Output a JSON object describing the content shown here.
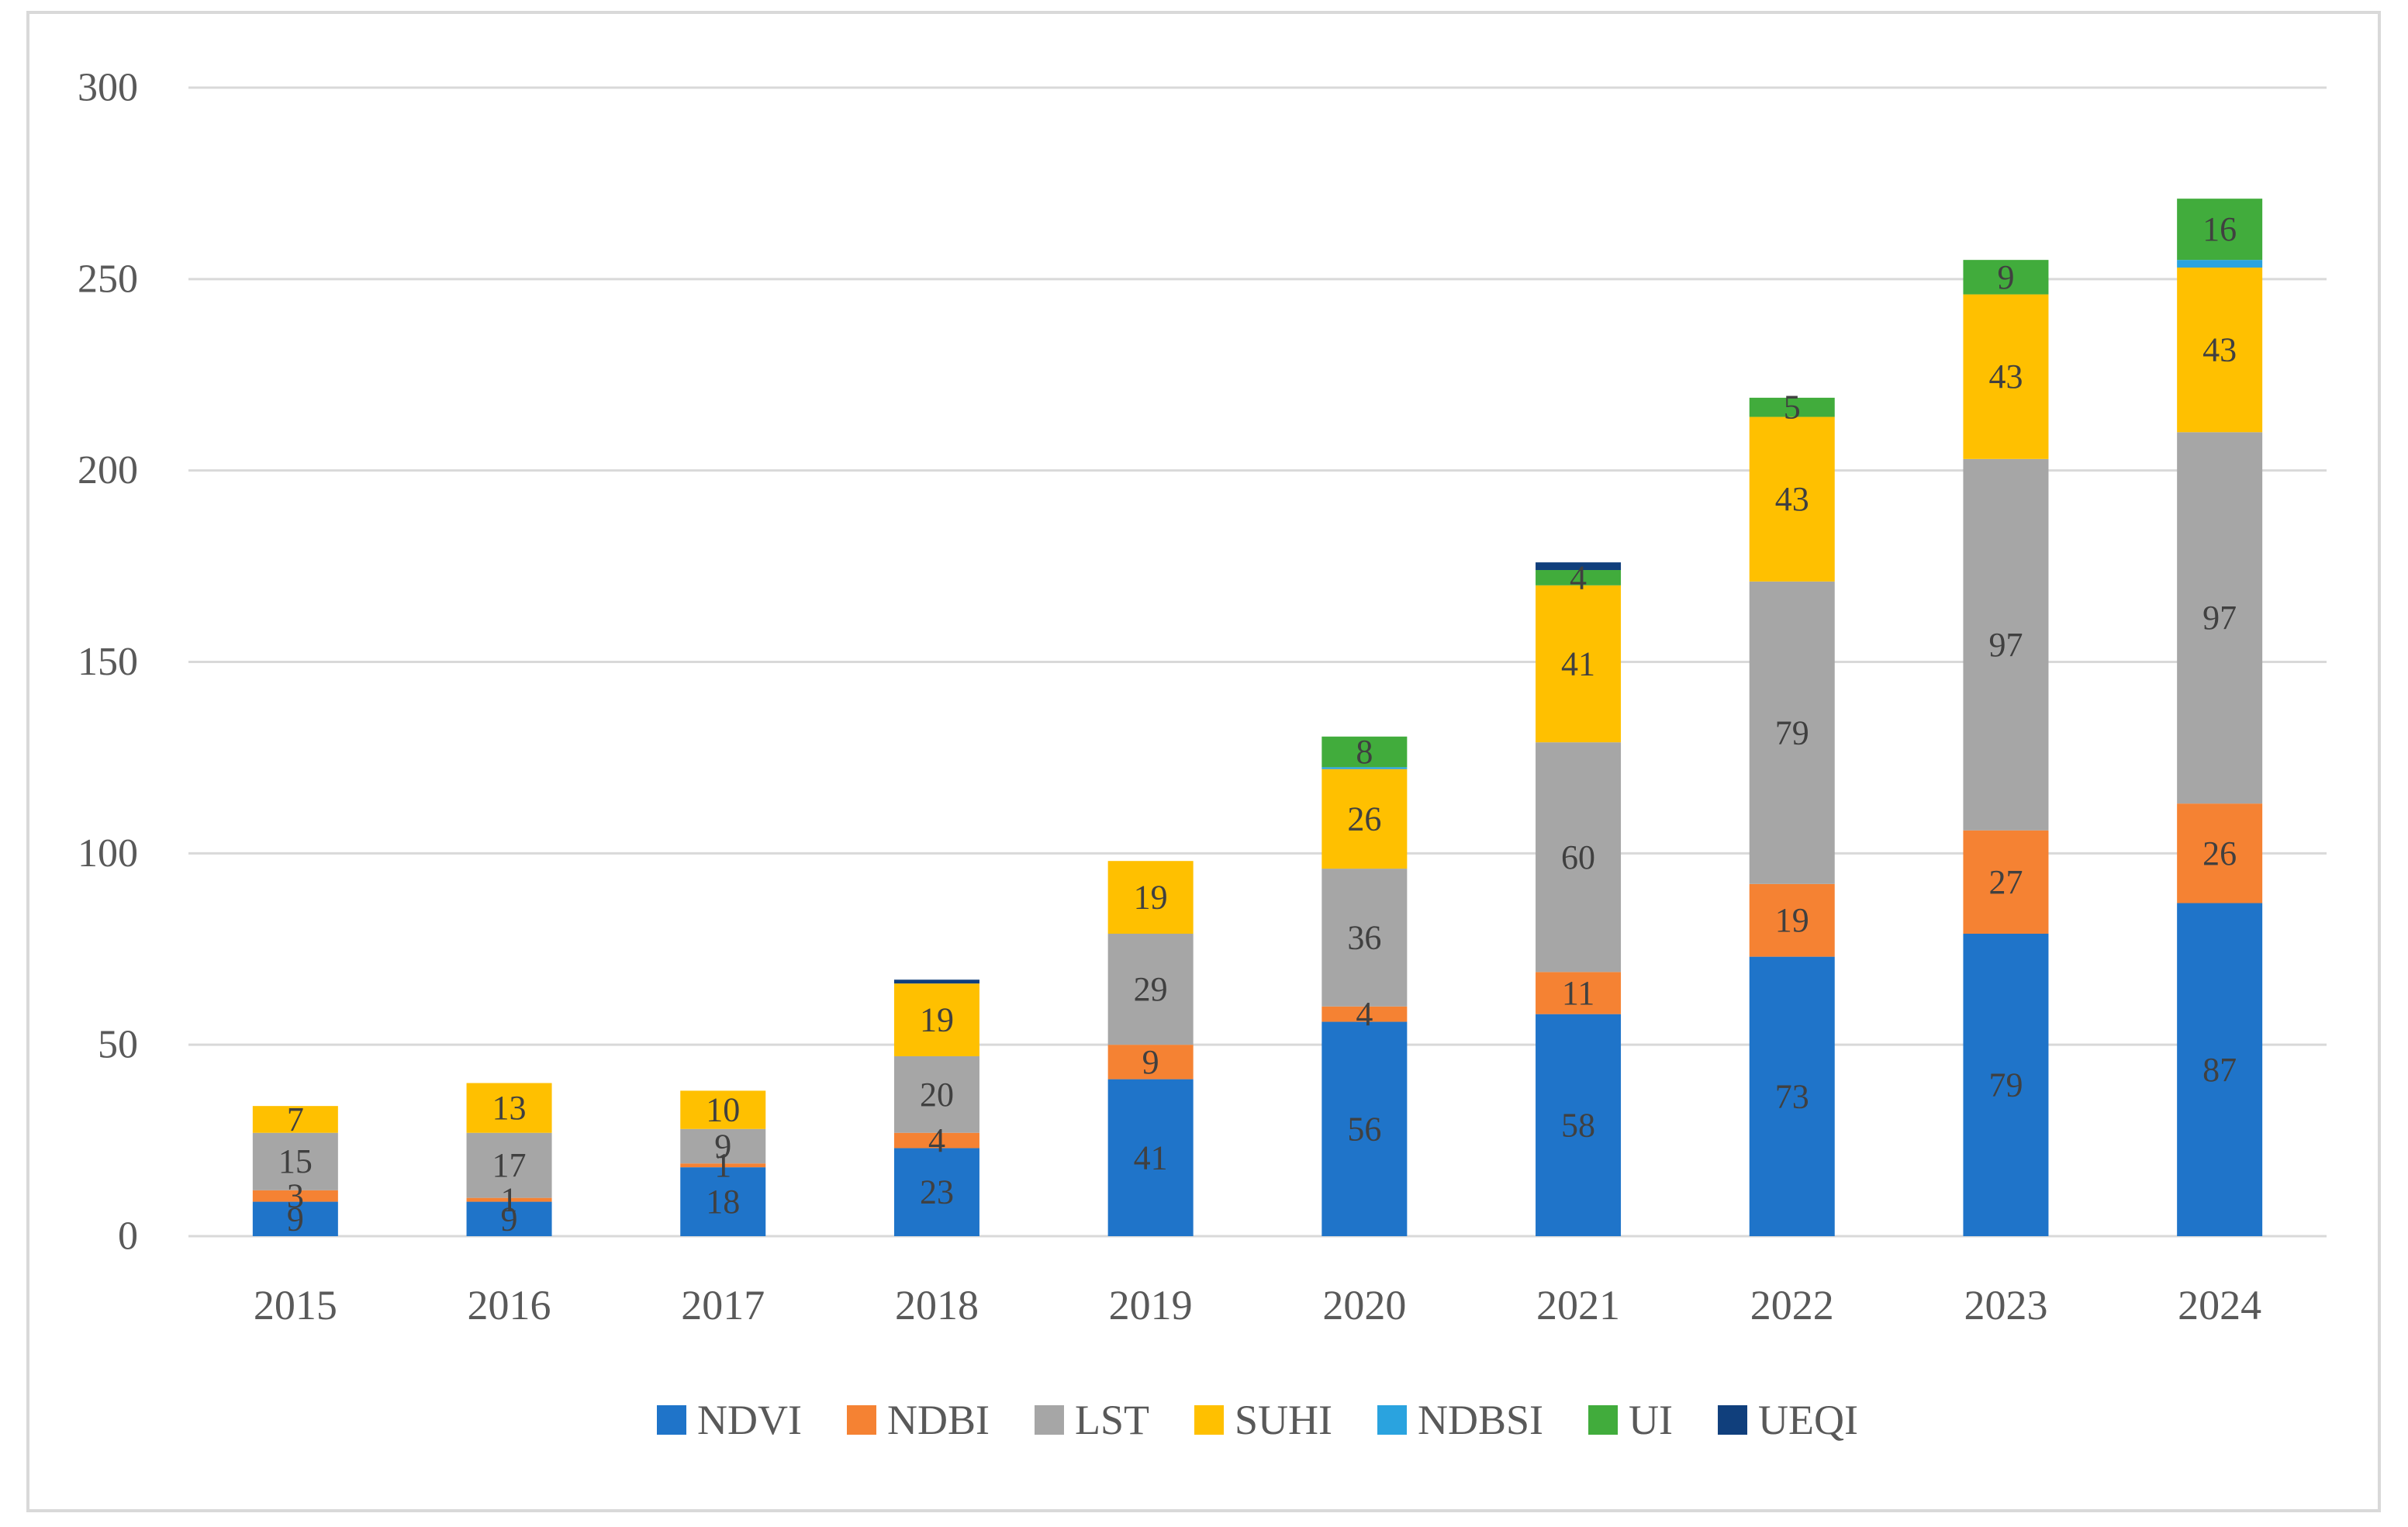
{
  "chart_data": {
    "type": "stacked-bar",
    "title": "",
    "xlabel": "",
    "ylabel": "",
    "ylim": [
      0,
      300
    ],
    "yticks": [
      0,
      50,
      100,
      150,
      200,
      250,
      300
    ],
    "ytick_labels": [
      "0",
      "50",
      "100",
      "150",
      "200",
      "250",
      "300"
    ],
    "grid": true,
    "legend_position": "bottom",
    "categories": [
      "2015",
      "2016",
      "2017",
      "2018",
      "2019",
      "2020",
      "2021",
      "2022",
      "2023",
      "2024"
    ],
    "series": [
      {
        "name": "NDVI",
        "color": "#1f74c9",
        "values": [
          9,
          9,
          18,
          23,
          41,
          56,
          58,
          73,
          79,
          87
        ]
      },
      {
        "name": "NDBI",
        "color": "#f58233",
        "values": [
          3,
          1,
          1,
          4,
          9,
          4,
          11,
          19,
          27,
          26
        ]
      },
      {
        "name": "LST",
        "color": "#a6a6a6",
        "values": [
          15,
          17,
          9,
          20,
          29,
          36,
          60,
          79,
          97,
          97
        ]
      },
      {
        "name": "SUHI",
        "color": "#ffc000",
        "values": [
          7,
          13,
          10,
          19,
          19,
          26,
          41,
          43,
          43,
          43
        ]
      },
      {
        "name": "NDBSI",
        "color": "#2aa3df",
        "values": [
          0,
          0,
          0,
          0,
          0,
          0.5,
          0,
          0,
          0,
          2
        ]
      },
      {
        "name": "UI",
        "color": "#41ac3c",
        "values": [
          0,
          0,
          0,
          0,
          0,
          8,
          4,
          5,
          9,
          16
        ]
      },
      {
        "name": "UEQI",
        "color": "#103f7c",
        "values": [
          0,
          0,
          0,
          1,
          0,
          0,
          2,
          0,
          0,
          0
        ]
      }
    ],
    "labels": [
      {
        "name": "NDVI",
        "values": [
          "9",
          "9",
          "18",
          "23",
          "41",
          "56",
          "58",
          "73",
          "79",
          "87"
        ]
      },
      {
        "name": "NDBI",
        "values": [
          "3",
          "1",
          "1",
          "4",
          "9",
          "4",
          "11",
          "19",
          "27",
          "26"
        ]
      },
      {
        "name": "LST",
        "values": [
          "15",
          "17",
          "9",
          "20",
          "29",
          "36",
          "60",
          "79",
          "97",
          "97"
        ]
      },
      {
        "name": "SUHI",
        "values": [
          "7",
          "13",
          "10",
          "19",
          "19",
          "26",
          "41",
          "43",
          "43",
          "43"
        ]
      },
      {
        "name": "NDBSI",
        "values": [
          "",
          "",
          "",
          "",
          "",
          "",
          "",
          "",
          "",
          ""
        ]
      },
      {
        "name": "UI",
        "values": [
          "",
          "",
          "",
          "",
          "",
          "8",
          "4",
          "5",
          "9",
          "16"
        ]
      },
      {
        "name": "UEQI",
        "values": [
          "",
          "",
          "",
          "",
          "",
          "",
          "",
          "",
          "",
          ""
        ]
      }
    ],
    "label_color": "#404040",
    "axis_text_color": "#595959",
    "grid_color": "#d9d9d9"
  }
}
